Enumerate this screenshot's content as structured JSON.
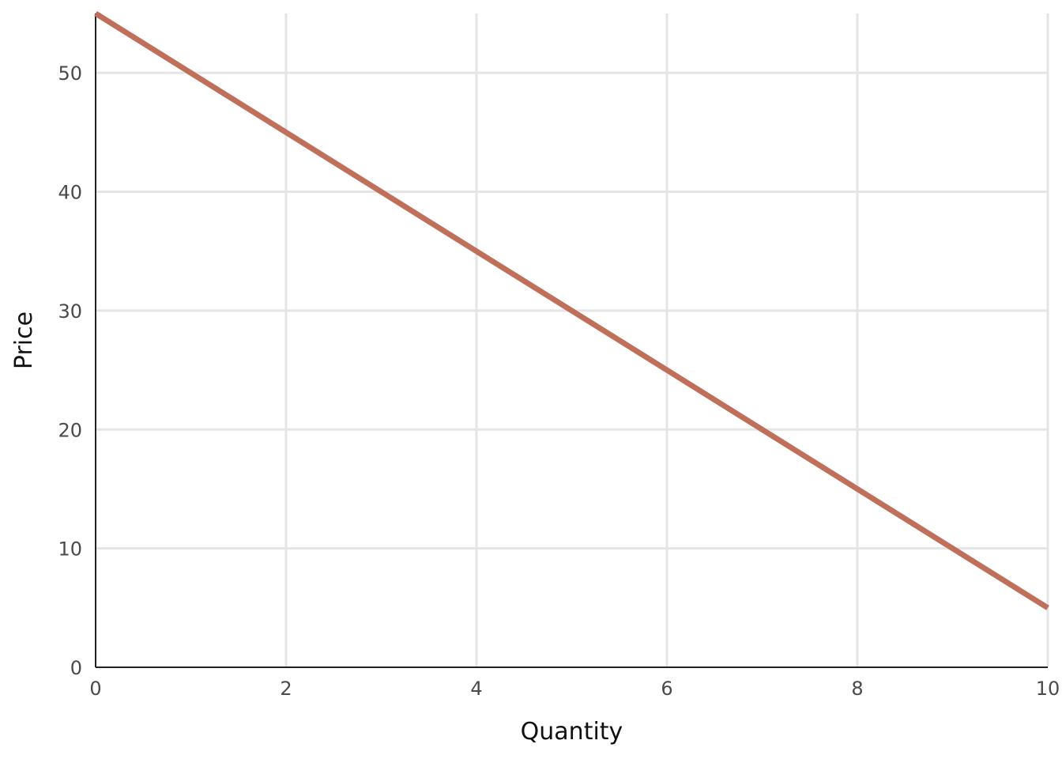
{
  "chart_data": {
    "type": "line",
    "title": "",
    "xlabel": "Quantity",
    "ylabel": "Price",
    "xlim": [
      0,
      10
    ],
    "ylim": [
      0,
      55
    ],
    "xticks": [
      0,
      2,
      4,
      6,
      8,
      10
    ],
    "yticks": [
      0,
      10,
      20,
      30,
      40,
      50
    ],
    "grid": true,
    "legend": "none",
    "series": [
      {
        "color": "#c0705a",
        "x": [
          0,
          10
        ],
        "y": [
          55,
          5
        ]
      }
    ]
  }
}
